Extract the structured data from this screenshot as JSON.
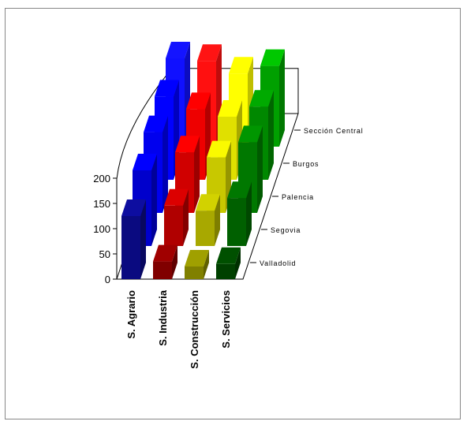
{
  "chart_data": {
    "type": "bar",
    "subtype": "3d-bar",
    "title": "",
    "xlabel": "",
    "ylabel": "",
    "categories": [
      "S. Agrario",
      "S. Industria",
      "S. Construcción",
      "S. Servicios"
    ],
    "depth_categories": [
      "Valladolid",
      "Segovia",
      "Palencia",
      "Burgos",
      "Sección Central"
    ],
    "y_ticks": [
      0,
      50,
      100,
      150,
      200
    ],
    "ylim": [
      0,
      230
    ],
    "grid": false,
    "legend": "none",
    "series": [
      {
        "values": [
          125,
          35,
          25,
          30
        ]
      },
      {
        "values": [
          150,
          80,
          70,
          95
        ]
      },
      {
        "values": [
          160,
          120,
          110,
          140
        ]
      },
      {
        "values": [
          165,
          140,
          125,
          145
        ]
      },
      {
        "values": [
          175,
          170,
          145,
          160
        ]
      }
    ],
    "colors": {
      "S. Agrario": [
        "#0a0a80",
        "#0000cc",
        "#0000ee",
        "#0000ff",
        "#1010ff"
      ],
      "S. Industria": [
        "#800000",
        "#b00000",
        "#d00000",
        "#ee0000",
        "#ff1010"
      ],
      "S. Construcción": [
        "#808000",
        "#a8a800",
        "#c8c800",
        "#e0e000",
        "#ffff00"
      ],
      "S. Servicios": [
        "#004000",
        "#006000",
        "#007800",
        "#008800",
        "#00a000"
      ]
    }
  }
}
